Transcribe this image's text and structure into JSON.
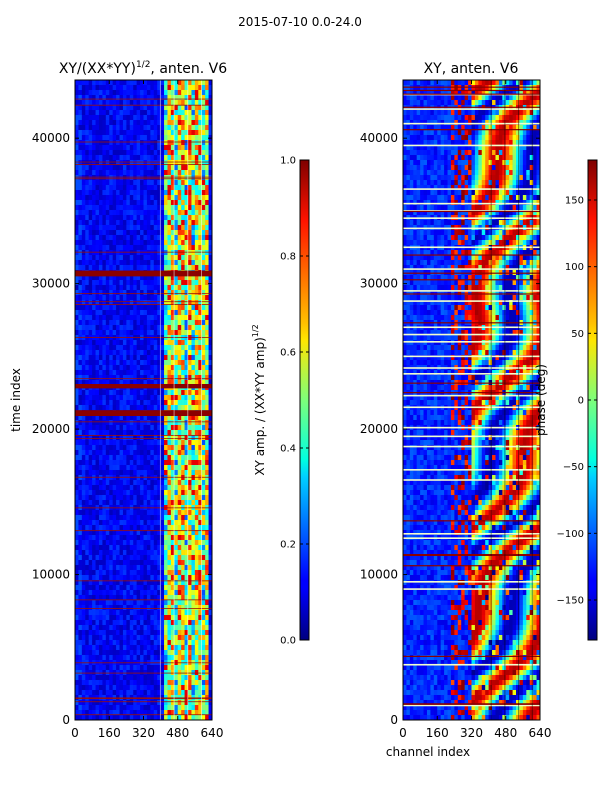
{
  "suptitle": "2015-07-10 0.0-24.0",
  "chart_data": [
    {
      "type": "heatmap",
      "title_main": "XY/(XX*YY)",
      "title_exp": "1/2",
      "title_suffix": ", anten. V6",
      "xlabel": "",
      "ylabel": "time index",
      "xlim": [
        0,
        640
      ],
      "ylim": [
        0,
        44000
      ],
      "xticks": [
        0,
        160,
        320,
        480,
        640
      ],
      "yticks": [
        0,
        10000,
        20000,
        30000,
        40000
      ],
      "xtick_labels": [
        "0",
        "160",
        "320",
        "480",
        "640"
      ],
      "ytick_labels": [
        "0",
        "10000",
        "20000",
        "30000",
        "40000"
      ],
      "colorbar": {
        "label_main": "XY amp. / (XX*YY amp)",
        "label_exp": "1/2",
        "range": [
          0.0,
          1.0
        ],
        "ticks": [
          0.0,
          0.2,
          0.4,
          0.6,
          0.8,
          1.0
        ],
        "tick_labels": [
          "0.0",
          "0.2",
          "0.4",
          "0.6",
          "0.8",
          "1.0"
        ]
      },
      "notes": {
        "background_value": 0.08,
        "bright_channel_range": [
          410,
          620
        ],
        "flagged_rows_full_red": [
          [
            20900,
            21300
          ],
          [
            30500,
            30900
          ],
          [
            22800,
            23100
          ]
        ]
      }
    },
    {
      "type": "heatmap",
      "title": "XY, anten. V6",
      "xlabel": "channel index",
      "ylabel": "",
      "xlim": [
        0,
        640
      ],
      "ylim": [
        0,
        44000
      ],
      "xticks": [
        0,
        160,
        320,
        480,
        640
      ],
      "yticks": [
        0,
        10000,
        20000,
        30000,
        40000
      ],
      "xtick_labels": [
        "0",
        "160",
        "320",
        "480",
        "640"
      ],
      "ytick_labels": [
        "0",
        "10000",
        "20000",
        "30000",
        "40000"
      ],
      "colorbar": {
        "label": "phase (deg)",
        "range": [
          -180,
          180
        ],
        "ticks": [
          -150,
          -100,
          -50,
          0,
          50,
          100,
          150
        ],
        "tick_labels": [
          "−150",
          "−100",
          "−50",
          "0",
          "50",
          "100",
          "150"
        ]
      },
      "notes": {
        "flagged_rows_light_yellow": [
          1000,
          3800,
          9000,
          9500,
          12500,
          12800,
          16500,
          17200,
          18800,
          19500,
          20100,
          21500,
          22300,
          23800,
          24200,
          25000,
          26000,
          26500,
          27000,
          28800,
          29500,
          31000,
          32500,
          33800,
          34500,
          35000,
          35500,
          36500,
          39500,
          41000,
          42000,
          43000
        ]
      }
    }
  ]
}
